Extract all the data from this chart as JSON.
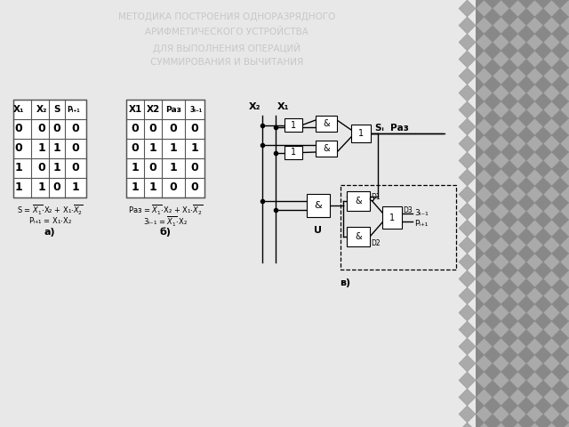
{
  "title_lines": [
    "МЕТОДИКА ПОСТРОЕНИЯ ОДНОРАЗРЯДНОГО",
    "АРИФМЕТИЧЕСКОГО УСТРОЙСТВА",
    "ДЛЯ ВЫПОЛНЕНИЯ ОПЕРАЦИЙ",
    "СУММИРОВАНИЯ И ВЫЧИТАНИЯ"
  ],
  "title_color": "#c8c8c8",
  "bg_color": "#e8e8e8",
  "table_a_rows": [
    [
      "0",
      "0",
      "0",
      "0"
    ],
    [
      "0",
      "1",
      "1",
      "0"
    ],
    [
      "1",
      "0",
      "1",
      "0"
    ],
    [
      "1",
      "1",
      "0",
      "1"
    ]
  ],
  "table_b_rows": [
    [
      "0",
      "0",
      "0",
      "0"
    ],
    [
      "0",
      "1",
      "1",
      "1"
    ],
    [
      "1",
      "0",
      "1",
      "0"
    ],
    [
      "1",
      "1",
      "0",
      "0"
    ]
  ]
}
